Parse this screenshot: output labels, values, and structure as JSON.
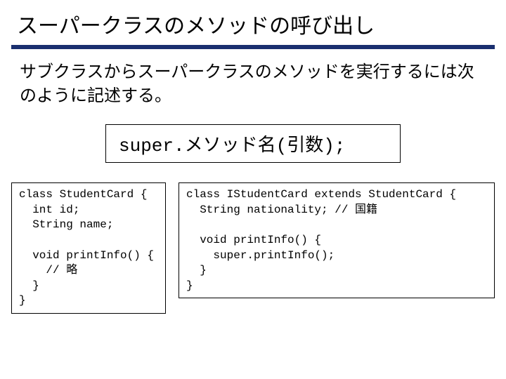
{
  "title": "スーパークラスのメソッドの呼び出し",
  "subtitle": "サブクラスからスーパークラスのメソッドを実行するには次のように記述する。",
  "syntax": "super.メソッド名(引数);",
  "colors": {
    "underline": "#1a2f6f",
    "background": "#ffffff",
    "text": "#000000",
    "border": "#000000"
  },
  "code_left": "class StudentCard {\n  int id;\n  String name;\n\n  void printInfo() {\n    // 略\n  }\n}",
  "code_right": "class IStudentCard extends StudentCard {\n  String nationality; // 国籍\n\n  void printInfo() {\n    super.printInfo();\n  }\n}"
}
